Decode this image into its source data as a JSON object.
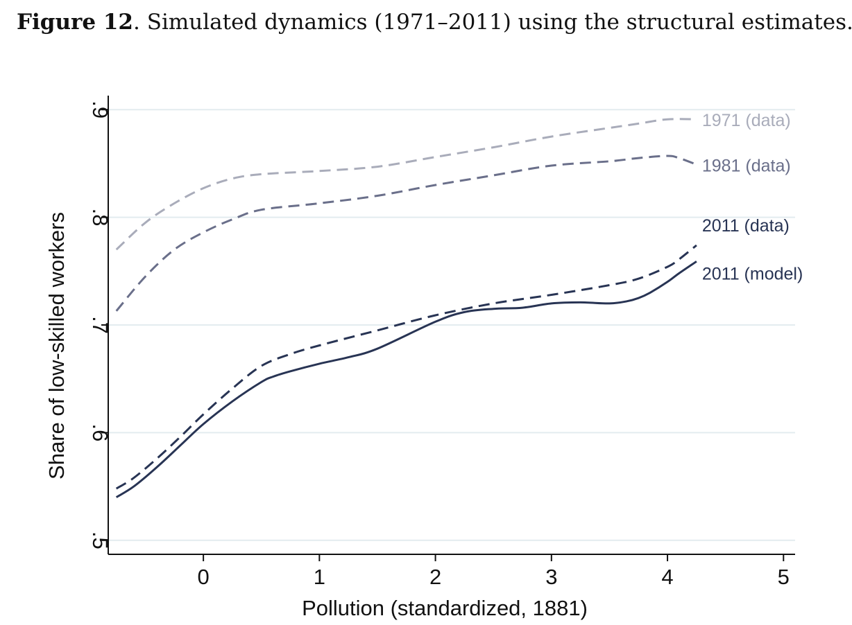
{
  "caption": {
    "lead": "Figure 12",
    "text": ". Simulated dynamics (1971–2011) using the structural estimates."
  },
  "chart_data": {
    "type": "line",
    "title": "",
    "xlabel": "Pollution (standardized, 1881)",
    "ylabel": "Share of low-skilled workers",
    "xlim": [
      -0.82,
      5.1
    ],
    "ylim": [
      0.487,
      0.913
    ],
    "x_ticks": [
      0,
      1,
      2,
      3,
      4,
      5
    ],
    "x_tick_labels": [
      "0",
      "1",
      "2",
      "3",
      "4",
      "5"
    ],
    "y_ticks": [
      0.5,
      0.6,
      0.7,
      0.8,
      0.9
    ],
    "y_tick_labels": [
      ".5",
      ".6",
      ".7",
      ".8",
      ".9"
    ],
    "grid": "horizontal",
    "legend": "inline labels at right end of each line",
    "series": [
      {
        "name": "1971 (data)",
        "color": "#a9acba",
        "dash": "dashed",
        "x": [
          -0.75,
          -0.5,
          -0.25,
          0,
          0.25,
          0.5,
          1,
          1.5,
          2,
          2.5,
          3,
          3.5,
          3.75,
          4,
          4.25
        ],
        "y": [
          0.77,
          0.795,
          0.813,
          0.827,
          0.836,
          0.84,
          0.843,
          0.847,
          0.856,
          0.865,
          0.875,
          0.883,
          0.887,
          0.891,
          0.891
        ]
      },
      {
        "name": "1981 (data)",
        "color": "#6a6f8a",
        "dash": "dashed",
        "x": [
          -0.75,
          -0.5,
          -0.25,
          0,
          0.25,
          0.5,
          1,
          1.5,
          2,
          2.5,
          3,
          3.5,
          3.75,
          4,
          4.1,
          4.25
        ],
        "y": [
          0.713,
          0.745,
          0.77,
          0.786,
          0.798,
          0.807,
          0.813,
          0.82,
          0.83,
          0.839,
          0.848,
          0.852,
          0.855,
          0.857,
          0.855,
          0.849
        ]
      },
      {
        "name": "2011 (data)",
        "color": "#283454",
        "dash": "dashed",
        "x": [
          -0.75,
          -0.6,
          -0.4,
          -0.2,
          0,
          0.25,
          0.5,
          0.75,
          1,
          1.5,
          2,
          2.5,
          3,
          3.5,
          3.75,
          4,
          4.1,
          4.25
        ],
        "y": [
          0.548,
          0.558,
          0.576,
          0.596,
          0.617,
          0.641,
          0.662,
          0.673,
          0.681,
          0.695,
          0.709,
          0.72,
          0.728,
          0.737,
          0.743,
          0.754,
          0.761,
          0.774
        ]
      },
      {
        "name": "2011 (model)",
        "color": "#283454",
        "dash": "solid",
        "x": [
          -0.75,
          -0.6,
          -0.4,
          -0.2,
          0,
          0.25,
          0.5,
          0.6,
          0.75,
          1,
          1.25,
          1.5,
          2,
          2.25,
          2.5,
          2.75,
          3,
          3.25,
          3.5,
          3.65,
          3.75,
          3.85,
          4,
          4.1,
          4.25
        ],
        "y": [
          0.54,
          0.55,
          0.568,
          0.588,
          0.608,
          0.629,
          0.647,
          0.652,
          0.657,
          0.664,
          0.67,
          0.678,
          0.703,
          0.712,
          0.715,
          0.716,
          0.72,
          0.721,
          0.72,
          0.722,
          0.725,
          0.73,
          0.74,
          0.748,
          0.759
        ]
      }
    ]
  }
}
